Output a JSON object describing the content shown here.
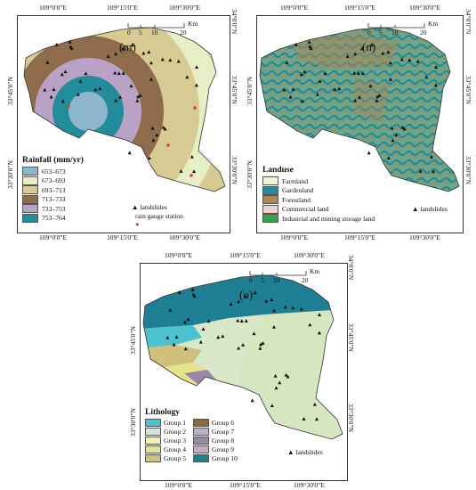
{
  "panel_m": {
    "label": "(m)",
    "top_ticks": [
      "109°0'0\"E",
      "109°15'0\"E",
      "109°30'0\"E"
    ],
    "bottom_ticks": [
      "109°0'0\"E",
      "109°15'0\"E",
      "109°30'0\"E"
    ],
    "left_ticks": [
      "33°45'0\"N",
      "33°30'0\"N"
    ],
    "right_ticks": [
      "34°0'0\"N",
      "33°45'0\"N",
      "33°30'0\"N"
    ],
    "scale": {
      "labels": [
        "0",
        "5",
        "10",
        "20"
      ],
      "unit": "Km"
    },
    "legend_title": "Rainfall (mm/yr)",
    "legend_items": [
      {
        "label": "653–673",
        "color": "#8fb6cf"
      },
      {
        "label": "673–693",
        "color": "#e7efc4"
      },
      {
        "label": "693–713",
        "color": "#d7cb93"
      },
      {
        "label": "713–733",
        "color": "#8e6c4c"
      },
      {
        "label": "733–753",
        "color": "#b9a2c6"
      },
      {
        "label": "753–764",
        "color": "#238c9a"
      }
    ],
    "marker_landslides": "landslides",
    "marker_gauge": "rain gauge station"
  },
  "panel_n": {
    "label": "(n)",
    "top_ticks": [
      "109°0'0\"E",
      "109°15'0\"E",
      "109°30'0\"E"
    ],
    "bottom_ticks": [
      "109°0'0\"E",
      "109°15'0\"E",
      "109°30'0\"E"
    ],
    "left_ticks": [
      "33°45'0\"N",
      "33°30'0\"N"
    ],
    "right_ticks": [
      "34°0'0\"N",
      "33°45'0\"N",
      "33°30'0\"N"
    ],
    "scale": {
      "labels": [
        "0",
        "5",
        "10",
        "20"
      ],
      "unit": "Km"
    },
    "legend_title": "Landuse",
    "legend_items": [
      {
        "label": "Farmland",
        "color": "#eef5cf"
      },
      {
        "label": "Gardenland",
        "color": "#2b8a95"
      },
      {
        "label": "Forestland",
        "color": "#a7875a"
      },
      {
        "label": "Commercial land",
        "color": "#f3d0c8"
      },
      {
        "label": "Industrial and mining storage land",
        "color": "#3aa24a"
      }
    ],
    "marker_landslides": "landslides"
  },
  "panel_o": {
    "label": "(o)",
    "top_ticks": [
      "109°0'0\"E",
      "109°15'0\"E",
      "109°30'0\"E"
    ],
    "bottom_ticks": [
      "109°0'0\"E",
      "109°15'0\"E",
      "109°30'0\"E"
    ],
    "left_ticks": [
      "33°45'0\"N",
      "33°30'0\"N"
    ],
    "right_ticks": [
      "34°0'0\"N",
      "33°45'0\"N",
      "33°30'0\"N"
    ],
    "scale": {
      "labels": [
        "0",
        "5",
        "10",
        "20"
      ],
      "unit": "Km"
    },
    "legend_title": "Lithology",
    "legend_items": [
      {
        "label": "Group 1",
        "color": "#4cc2cf"
      },
      {
        "label": "Group 6",
        "color": "#8a6a3c"
      },
      {
        "label": "Group 2",
        "color": "#cfe9d2"
      },
      {
        "label": "Group 7",
        "color": "#b8b3c9"
      },
      {
        "label": "Group 3",
        "color": "#f3f2a8"
      },
      {
        "label": "Group 8",
        "color": "#9a86a8"
      },
      {
        "label": "Group 4",
        "color": "#e5e38c"
      },
      {
        "label": "Group 9",
        "color": "#c9a9c6"
      },
      {
        "label": "Group 5",
        "color": "#cfc07e"
      },
      {
        "label": "Group 10",
        "color": "#1e7f94"
      }
    ],
    "marker_landslides": "landslides"
  }
}
